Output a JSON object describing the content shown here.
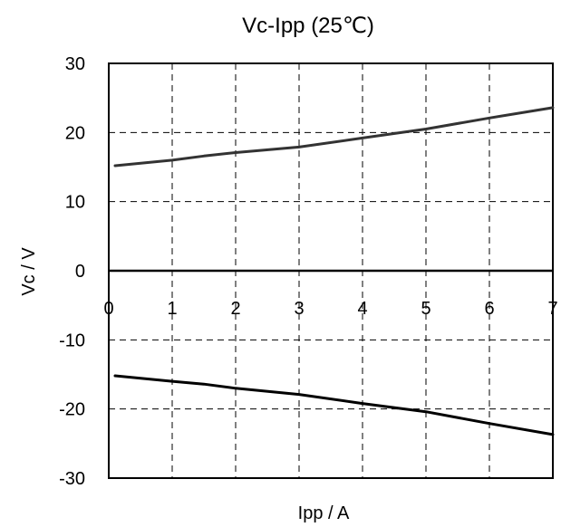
{
  "chart_data": {
    "type": "line",
    "title": "Vc-Ipp (25℃)",
    "xlabel": "Ipp / A",
    "ylabel": "Vc / V",
    "xlim": [
      0,
      7
    ],
    "ylim": [
      -30,
      30
    ],
    "x_ticks": [
      "0",
      "1",
      "2",
      "3",
      "4",
      "5",
      "6",
      "7"
    ],
    "y_ticks": [
      "30",
      "20",
      "10",
      "0",
      "-10",
      "-20",
      "-30"
    ],
    "grid": true,
    "grid_style": "dashed",
    "legend": "none",
    "series": [
      {
        "color": "#333333",
        "x": [
          0.1,
          1,
          1.5,
          2,
          3,
          4,
          5,
          6,
          7
        ],
        "y": [
          15.2,
          16.0,
          16.6,
          17.1,
          17.9,
          19.2,
          20.5,
          22.1,
          23.6
        ]
      },
      {
        "color": "#000000",
        "x": [
          0.1,
          1,
          1.5,
          2,
          3,
          4,
          5,
          6,
          7
        ],
        "y": [
          -15.2,
          -16.0,
          -16.4,
          -17.0,
          -17.9,
          -19.2,
          -20.4,
          -22.1,
          -23.7
        ]
      }
    ]
  }
}
